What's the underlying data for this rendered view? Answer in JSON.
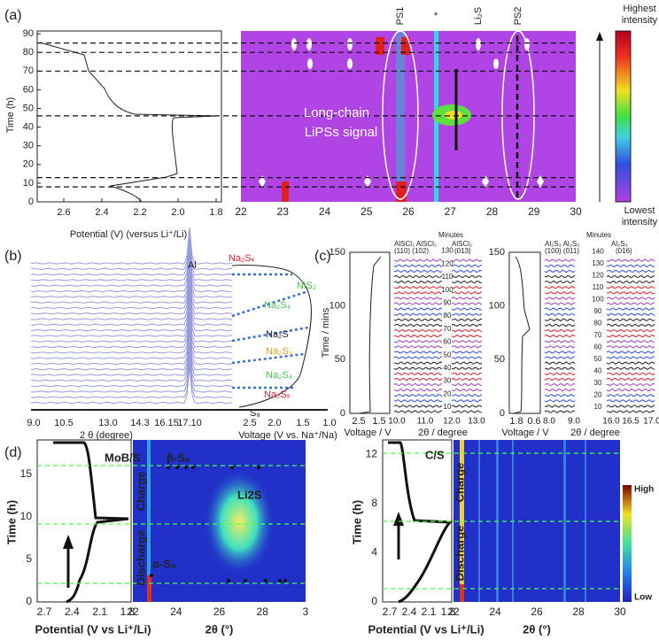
{
  "panel_labels": [
    "(a)",
    "(b)",
    "(c)",
    "(d)"
  ],
  "a": {
    "ylabel": "Time (h)",
    "yticks": [
      "0",
      "10",
      "20",
      "30",
      "40",
      "50",
      "60",
      "70",
      "80",
      "90"
    ],
    "xticks": [
      "2.6",
      "2.4",
      "2.2",
      "2.0",
      "1.8"
    ],
    "xlabel": "Potential (V) (versus Li⁺/Li)",
    "heat_xticks": [
      "22",
      "23",
      "24",
      "25",
      "26",
      "27",
      "28",
      "29",
      "30"
    ],
    "peaks": [
      "PS1",
      "*",
      "Li₂S",
      "PS2"
    ],
    "annotation": [
      "Long-chain",
      "LiPSs signal"
    ],
    "colorbar_top": [
      "Highest",
      "intensity"
    ],
    "colorbar_bottom": [
      "Lowest",
      "intensity"
    ]
  },
  "b": {
    "peak": "Al",
    "phases": [
      "Na₂Sₓ",
      "NiS₂",
      "Na₂S₄",
      "Na₂S",
      "Na₂S₃",
      "Na₂S₄",
      "Na₂Sₓ",
      "S₈"
    ],
    "xticks": [
      "9.0",
      "10.5",
      "13.0",
      "14.3",
      "16.15",
      "17.10"
    ],
    "xlabel": "2 θ (degree)",
    "vticks": [
      "2.5",
      "2.0",
      "1.5",
      "1.0"
    ],
    "vlabel": "Voltage (V vs. Na⁺/Na)"
  },
  "c": {
    "minutes": "Minutes",
    "ylabel": "Time / mins",
    "yticks": [
      "0",
      "50",
      "100",
      "150"
    ],
    "left": {
      "headers": [
        "AlSCl₂ AlSCl₂",
        "(110)  (102)",
        "AlSCl₂",
        "(013)"
      ],
      "vticks": [
        "2.5",
        "1.5"
      ],
      "xticks": [
        "10.0",
        "11.0",
        "12.0",
        "13.0"
      ],
      "minute_ticks": [
        "10",
        "20",
        "30",
        "40",
        "50",
        "60",
        "70",
        "80",
        "90",
        "100",
        "110",
        "120",
        "130"
      ]
    },
    "right": {
      "headers": [
        "Al₂S₃ Al₂S₃",
        "(100) (011)",
        "Al₂S₃",
        "(016)"
      ],
      "vticks": [
        "1.8",
        "0.6"
      ],
      "xticks": [
        "8.0",
        "9.0",
        "16.0",
        "16.5",
        "17.0"
      ],
      "minute_ticks": [
        "10",
        "20",
        "30",
        "40",
        "50",
        "60",
        "70",
        "80",
        "90",
        "100",
        "110",
        "120",
        "130",
        "140"
      ]
    },
    "vlabel": "Voltage / V",
    "xlabel": "2θ / degree"
  },
  "d": {
    "left": {
      "label": "MoB/S",
      "ylabel": "Time (h)",
      "yticks": [
        "0",
        "5",
        "10",
        "15"
      ],
      "xticks": [
        "2.7",
        "2.4",
        "2.1",
        "1.8"
      ],
      "xlabel": "Potential (V vs Li⁺/Li)",
      "heat_xticks": [
        "22",
        "24",
        "26",
        "28",
        "3"
      ],
      "xlabel2": "2θ (°)",
      "states": [
        "Charge",
        "Discharge"
      ],
      "phases": [
        "β-S₈",
        "Li2S",
        "α-S₈"
      ]
    },
    "right": {
      "label": "C/S",
      "ylabel": "Time (h)",
      "yticks": [
        "0",
        "4",
        "8",
        "12"
      ],
      "xticks": [
        "2.7",
        "2.4",
        "2.1",
        "1.8"
      ],
      "xlabel": "Potential (V vs Li⁺/Li)",
      "heat_xticks": [
        "22",
        "24",
        "26",
        "28",
        "30"
      ],
      "xlabel2": "2θ (°)",
      "states": [
        "Charge",
        "Discharge"
      ],
      "colorbar": [
        "High",
        "Low"
      ]
    }
  }
}
